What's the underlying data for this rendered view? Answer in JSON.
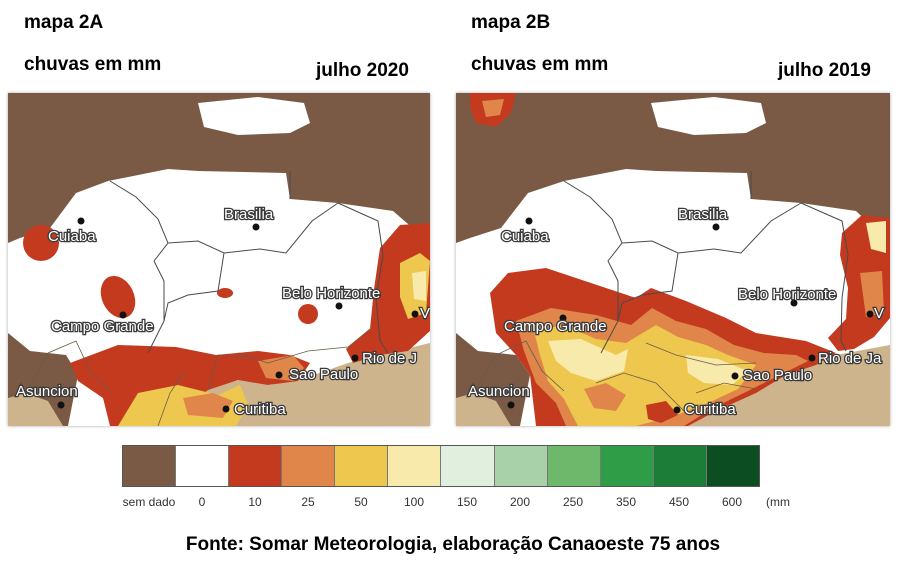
{
  "map_a": {
    "label": "mapa 2A",
    "subtitle": "chuvas em mm",
    "period": "julho 2020",
    "cities": {
      "cuiaba": "Cuiaba",
      "brasilia": "Brasilia",
      "campo_grande": "Campo Grande",
      "belo_horizonte": "Belo Horizonte",
      "asuncion": "Asuncion",
      "sao_paulo": "Sao Paulo",
      "curitiba": "Curitiba",
      "rio": "Rio de J",
      "vitoria": "V"
    }
  },
  "map_b": {
    "label": "mapa 2B",
    "subtitle": "chuvas em mm",
    "period": "julho 2019",
    "cities": {
      "cuiaba": "Cuiaba",
      "brasilia": "Brasilia",
      "campo_grande": "Campo Grande",
      "belo_horizonte": "Belo Horizonte",
      "asuncion": "Asuncion",
      "sao_paulo": "Sao Paulo",
      "curitiba": "Curitiba",
      "rio": "Rio de Ja",
      "vitoria": "V"
    }
  },
  "legend": {
    "unit": "(mm",
    "items": [
      {
        "label": "sem dado",
        "color": "#7a5a44"
      },
      {
        "label": "0",
        "color": "#ffffff"
      },
      {
        "label": "10",
        "color": "#c33a1f"
      },
      {
        "label": "25",
        "color": "#e0864a"
      },
      {
        "label": "50",
        "color": "#eec84e"
      },
      {
        "label": "100",
        "color": "#f8eaaa"
      },
      {
        "label": "150",
        "color": "#e1efdf"
      },
      {
        "label": "200",
        "color": "#a9d1a9"
      },
      {
        "label": "250",
        "color": "#6db86b"
      },
      {
        "label": "350",
        "color": "#2f9c48"
      },
      {
        "label": "450",
        "color": "#1b7d38"
      },
      {
        "label": "600",
        "color": "#0d4d22"
      }
    ]
  },
  "source": "Fonte: Somar Meteorologia, elaboração Canaoeste 75 anos"
}
